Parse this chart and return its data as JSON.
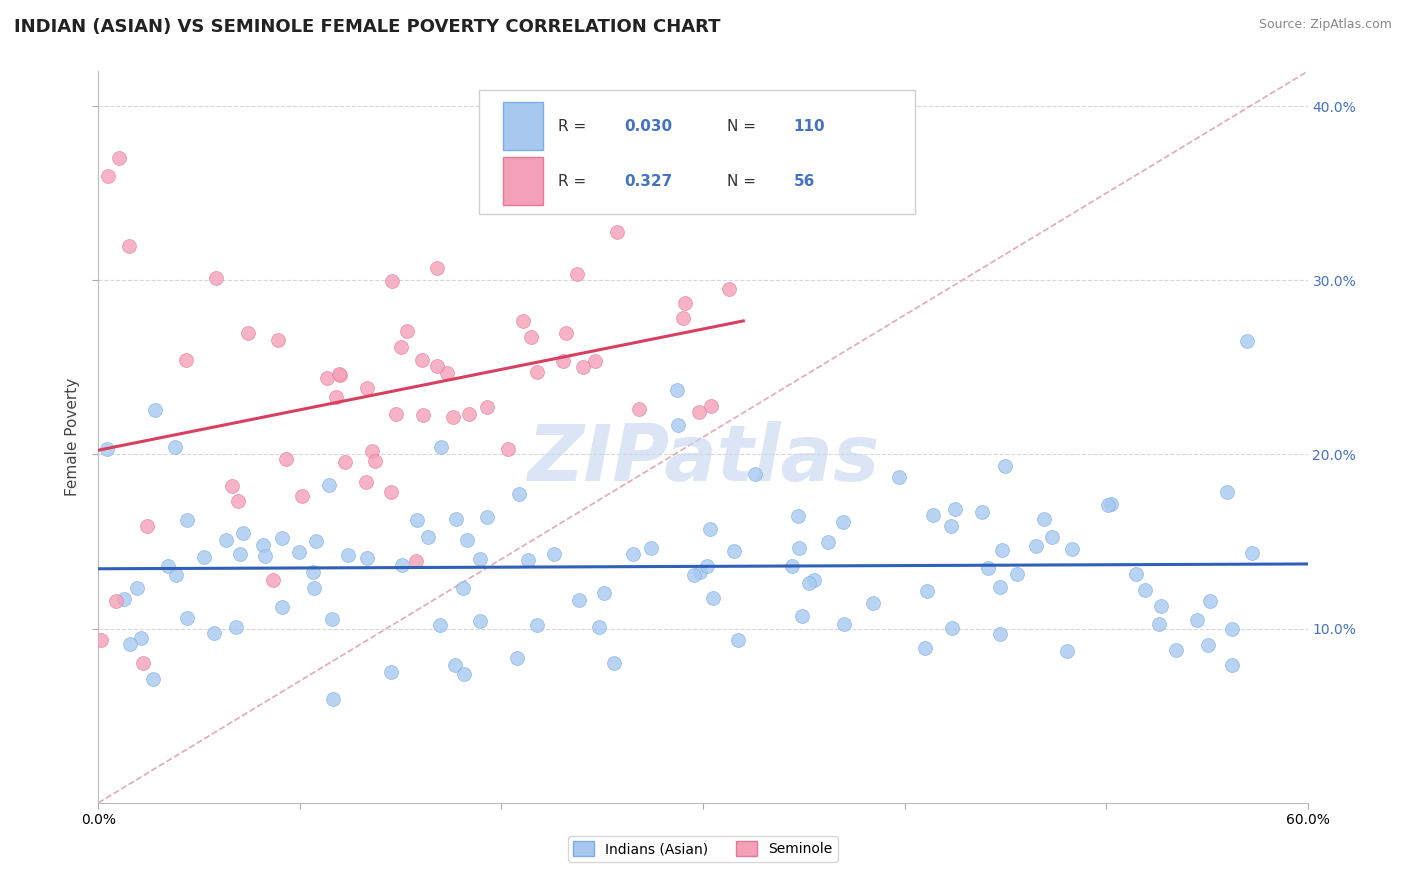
{
  "title": "INDIAN (ASIAN) VS SEMINOLE FEMALE POVERTY CORRELATION CHART",
  "source": "Source: ZipAtlas.com",
  "ylabel": "Female Poverty",
  "xlim": [
    0.0,
    0.6
  ],
  "ylim": [
    0.0,
    0.42
  ],
  "color_asian": "#a8c8f0",
  "color_asian_edge": "#7aaee8",
  "color_seminole": "#f4a0b8",
  "color_seminole_edge": "#e87898",
  "color_asian_line": "#3060b8",
  "color_seminole_line": "#d84060",
  "color_diagonal": "#e0a0b0",
  "color_right_ticks": "#4472c4",
  "watermark": "ZIPatlas",
  "watermark_color": "#c8d8f0",
  "legend_r1": "0.030",
  "legend_n1": "110",
  "legend_r2": "0.327",
  "legend_n2": "56",
  "ytick_vals": [
    0.1,
    0.2,
    0.3,
    0.4
  ],
  "ytick_labels": [
    "10.0%",
    "20.0%",
    "30.0%",
    "40.0%"
  ],
  "xtick_labels_left": "0.0%",
  "xtick_labels_right": "60.0%",
  "asian_seed": 42,
  "seminole_seed": 7
}
